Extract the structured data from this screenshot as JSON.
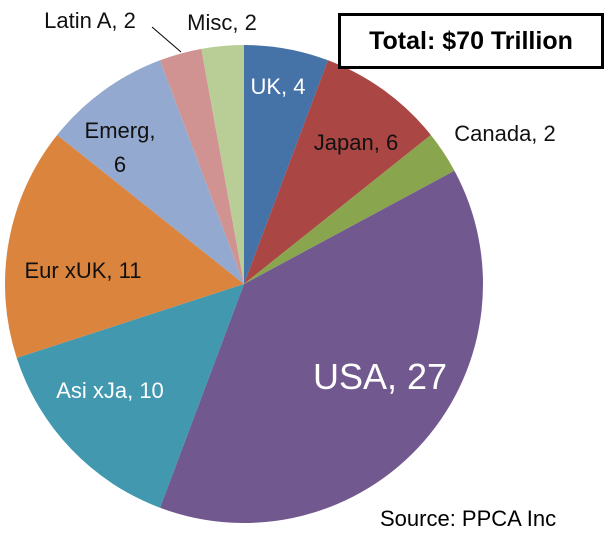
{
  "chart_data": {
    "type": "pie",
    "title": "Total: $70 Trillion",
    "source": "Source: PPCA Inc",
    "start_angle": "top, clockwise",
    "slices": [
      {
        "label": "UK, 4",
        "name": "UK",
        "value": 4,
        "color": "#4572a7"
      },
      {
        "label": "Japan, 6",
        "name": "Japan",
        "value": 6,
        "color": "#aa4643"
      },
      {
        "label": "Canada, 2",
        "name": "Canada",
        "value": 2,
        "color": "#89a54e"
      },
      {
        "label": "USA, 27",
        "name": "USA",
        "value": 27,
        "color": "#71588f"
      },
      {
        "label": "Asi xJa, 10",
        "name": "Asi xJa",
        "value": 10,
        "color": "#4198af"
      },
      {
        "label": "Eur xUK, 11",
        "name": "Eur xUK",
        "value": 11,
        "color": "#db843d"
      },
      {
        "label": "Emerg, 6",
        "name": "Emerg",
        "value": 6,
        "color": "#93a9cf"
      },
      {
        "label": "Latin A, 2",
        "name": "Latin A",
        "value": 2,
        "color": "#d19392"
      },
      {
        "label": "Misc, 2",
        "name": "Misc",
        "value": 2,
        "color": "#b9cd96"
      }
    ]
  }
}
